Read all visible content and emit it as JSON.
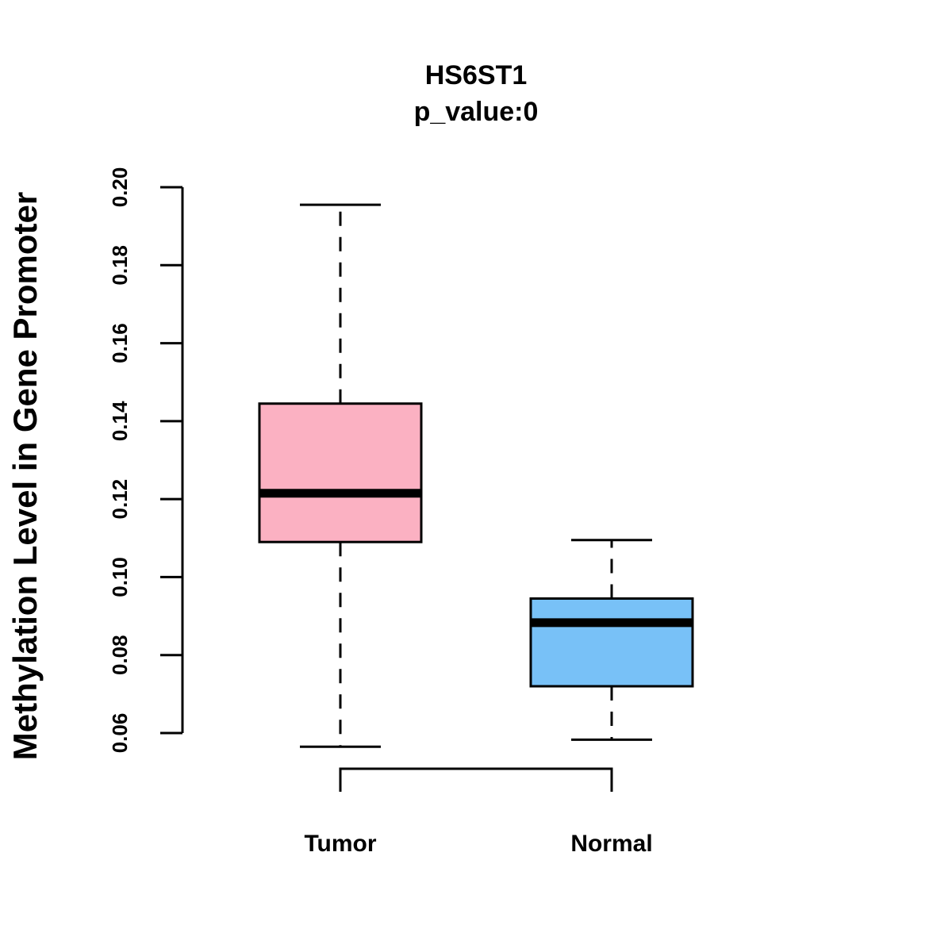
{
  "chart_data": {
    "type": "boxplot",
    "title": "HS6ST1",
    "subtitle": "p_value:0",
    "ylabel": "Methylation Level in Gene Promoter",
    "xlabel": "",
    "ylim": [
      0.06,
      0.2
    ],
    "yticks": [
      0.06,
      0.08,
      0.1,
      0.12,
      0.14,
      0.16,
      0.18,
      0.2
    ],
    "ytick_labels": [
      "0.06",
      "0.08",
      "0.10",
      "0.12",
      "0.14",
      "0.16",
      "0.18",
      "0.20"
    ],
    "groups": [
      {
        "name": "Tumor",
        "color": "#FBB1C2",
        "whisker_low": 0.0565,
        "q1": 0.109,
        "median": 0.1215,
        "q3": 0.1445,
        "whisker_high": 0.1955
      },
      {
        "name": "Normal",
        "color": "#78C1F7",
        "whisker_low": 0.0583,
        "q1": 0.072,
        "median": 0.0883,
        "q3": 0.0945,
        "whisker_high": 0.1095
      }
    ],
    "grid": false,
    "legend": "none"
  }
}
